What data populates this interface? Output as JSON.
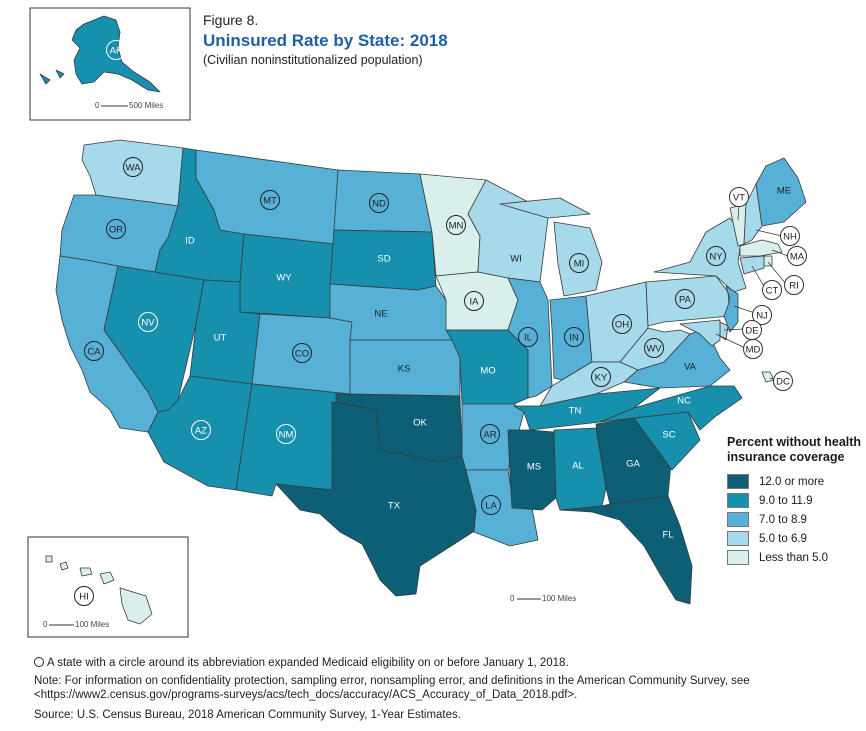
{
  "figure": {
    "label": "Figure 8.",
    "title": "Uninsured Rate by State: 2018",
    "subtitle": "(Civilian noninstitutionalized population)"
  },
  "colors": {
    "c1": "#0d5f76",
    "c2": "#1790ae",
    "c3": "#57b0d6",
    "c4": "#a6d9ea",
    "c5": "#d8efec",
    "border": "#3a3a3a"
  },
  "legend": {
    "title": "Percent without health insurance coverage",
    "items": [
      {
        "label": "12.0 or more",
        "color_key": "c1"
      },
      {
        "label": "9.0 to 11.9",
        "color_key": "c2"
      },
      {
        "label": "7.0 to 8.9",
        "color_key": "c3"
      },
      {
        "label": "5.0 to 6.9",
        "color_key": "c4"
      },
      {
        "label": "Less than 5.0",
        "color_key": "c5"
      }
    ]
  },
  "scales": {
    "alaska": {
      "zero": "0",
      "label": "500 Miles"
    },
    "hawaii": {
      "zero": "0",
      "label": "100 Miles"
    },
    "conus": {
      "zero": "0",
      "label": "100 Miles"
    }
  },
  "states": {
    "AK": {
      "cat": "c2",
      "circled": true
    },
    "HI": {
      "cat": "c5",
      "circled": true
    },
    "WA": {
      "cat": "c4",
      "circled": true
    },
    "OR": {
      "cat": "c3",
      "circled": true
    },
    "CA": {
      "cat": "c3",
      "circled": true
    },
    "NV": {
      "cat": "c2",
      "circled": true
    },
    "ID": {
      "cat": "c2",
      "circled": false
    },
    "MT": {
      "cat": "c3",
      "circled": true
    },
    "WY": {
      "cat": "c2",
      "circled": false
    },
    "UT": {
      "cat": "c2",
      "circled": false
    },
    "AZ": {
      "cat": "c2",
      "circled": true
    },
    "CO": {
      "cat": "c3",
      "circled": true
    },
    "NM": {
      "cat": "c2",
      "circled": true
    },
    "ND": {
      "cat": "c3",
      "circled": true
    },
    "SD": {
      "cat": "c2",
      "circled": false
    },
    "NE": {
      "cat": "c3",
      "circled": false
    },
    "KS": {
      "cat": "c3",
      "circled": false
    },
    "OK": {
      "cat": "c1",
      "circled": false
    },
    "TX": {
      "cat": "c1",
      "circled": false
    },
    "MN": {
      "cat": "c5",
      "circled": true
    },
    "IA": {
      "cat": "c5",
      "circled": true
    },
    "MO": {
      "cat": "c2",
      "circled": false
    },
    "AR": {
      "cat": "c3",
      "circled": true
    },
    "LA": {
      "cat": "c3",
      "circled": true
    },
    "WI": {
      "cat": "c4",
      "circled": false
    },
    "IL": {
      "cat": "c3",
      "circled": true
    },
    "MI": {
      "cat": "c4",
      "circled": true
    },
    "IN": {
      "cat": "c3",
      "circled": true
    },
    "OH": {
      "cat": "c4",
      "circled": true
    },
    "KY": {
      "cat": "c4",
      "circled": true
    },
    "TN": {
      "cat": "c2",
      "circled": false
    },
    "MS": {
      "cat": "c1",
      "circled": false
    },
    "AL": {
      "cat": "c2",
      "circled": false
    },
    "GA": {
      "cat": "c1",
      "circled": false
    },
    "FL": {
      "cat": "c1",
      "circled": false
    },
    "SC": {
      "cat": "c2",
      "circled": false
    },
    "NC": {
      "cat": "c2",
      "circled": false
    },
    "VA": {
      "cat": "c3",
      "circled": false
    },
    "WV": {
      "cat": "c4",
      "circled": true
    },
    "PA": {
      "cat": "c4",
      "circled": true
    },
    "NY": {
      "cat": "c4",
      "circled": true
    },
    "VT": {
      "cat": "c5",
      "circled": true
    },
    "NH": {
      "cat": "c4",
      "circled": true
    },
    "ME": {
      "cat": "c3",
      "circled": false
    },
    "MA": {
      "cat": "c5",
      "circled": true
    },
    "RI": {
      "cat": "c5",
      "circled": true
    },
    "CT": {
      "cat": "c4",
      "circled": true
    },
    "NJ": {
      "cat": "c3",
      "circled": true
    },
    "DE": {
      "cat": "c4",
      "circled": true
    },
    "MD": {
      "cat": "c4",
      "circled": true
    },
    "DC": {
      "cat": "c5",
      "circled": true
    }
  },
  "notes": {
    "circle_note": "A state with a circle around its abbreviation expanded Medicaid eligibility on or before January 1, 2018.",
    "note": "Note: For information on confidentiality protection, sampling error, nonsampling error, and definitions in the American Community Survey, see <https://www2.census.gov/programs-surveys/acs/tech_docs/accuracy/ACS_Accuracy_of_Data_2018.pdf>.",
    "source": "Source: U.S. Census Bureau, 2018 American Community Survey, 1-Year Estimates."
  }
}
